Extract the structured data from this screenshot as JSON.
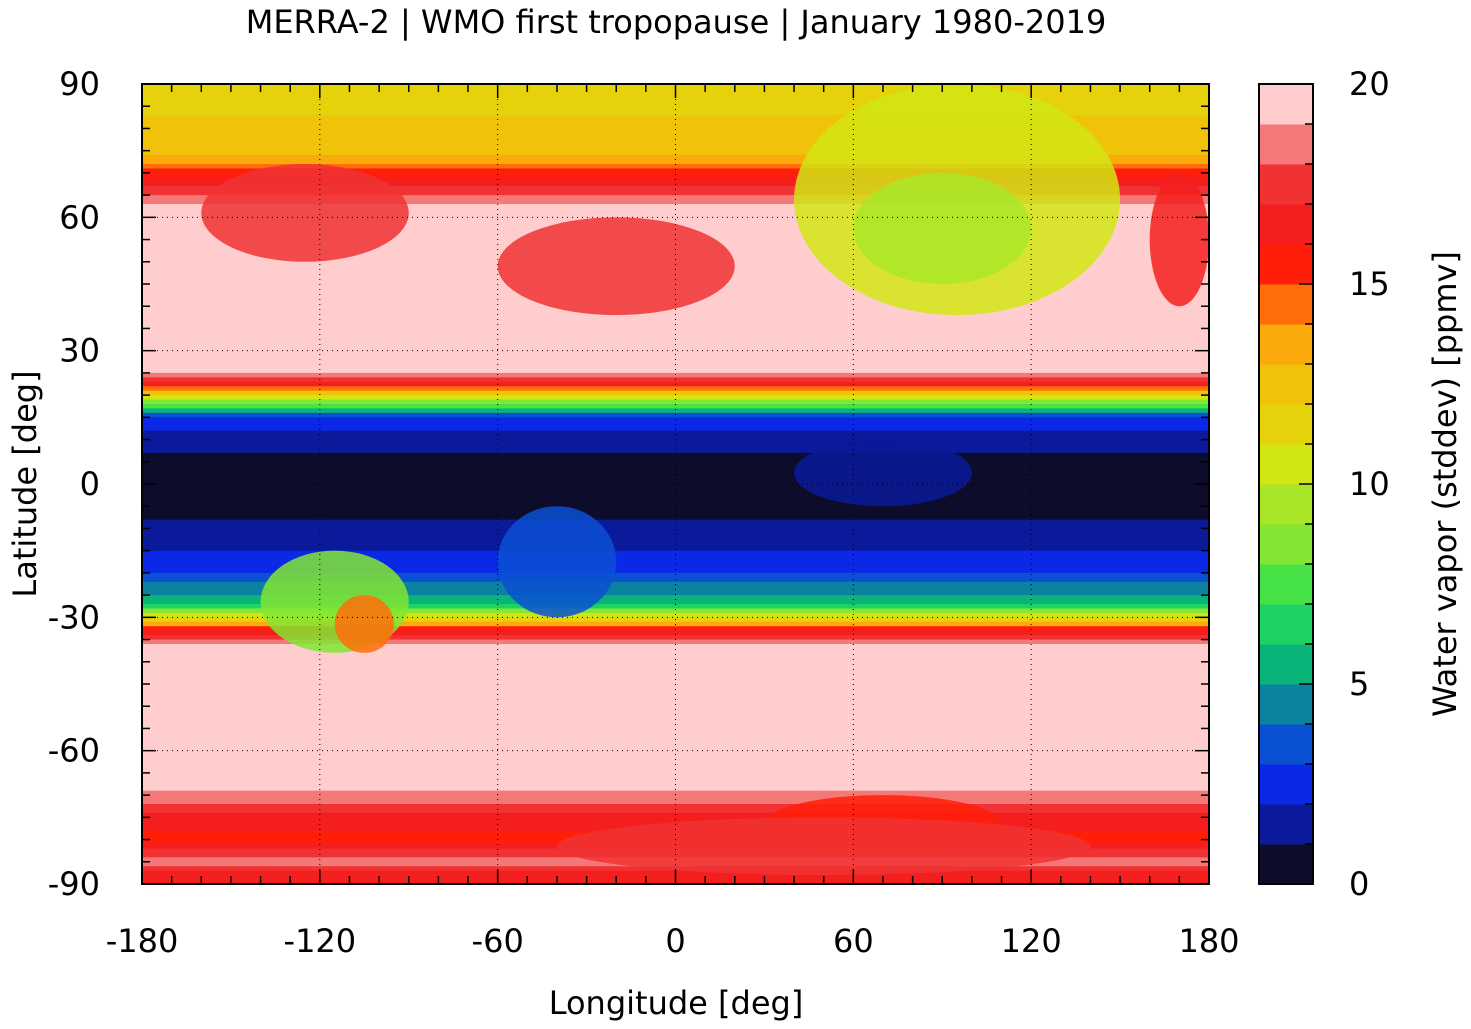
{
  "chart_data": {
    "type": "heatmap",
    "title": "MERRA-2 | WMO first tropopause | January 1980-2019",
    "xlabel": "Longitude [deg]",
    "ylabel": "Latitude [deg]",
    "colorbar_label": "Water vapor (stddev) [ppmv]",
    "xlim": [
      -180,
      180
    ],
    "ylim": [
      -90,
      90
    ],
    "xticks": [
      "-180",
      "-120",
      "-60",
      "0",
      "60",
      "120",
      "180"
    ],
    "yticks": [
      "-90",
      "-60",
      "-30",
      "0",
      "30",
      "60",
      "90"
    ],
    "xtick_values": [
      -180,
      -120,
      -60,
      0,
      60,
      120,
      180
    ],
    "ytick_values": [
      -90,
      -60,
      -30,
      0,
      30,
      60,
      90
    ],
    "colorbar_ticks": [
      "0",
      "5",
      "10",
      "15",
      "20"
    ],
    "colorbar_tick_values": [
      0,
      5,
      10,
      15,
      20
    ],
    "colorbar_range": [
      0,
      20
    ],
    "grid": true,
    "colorbar_levels": [
      {
        "from": 0,
        "to": 1,
        "color": "#0d0d2b"
      },
      {
        "from": 1,
        "to": 2,
        "color": "#0a1a9a"
      },
      {
        "from": 2,
        "to": 3,
        "color": "#0a28e6"
      },
      {
        "from": 3,
        "to": 4,
        "color": "#0a50d2"
      },
      {
        "from": 4,
        "to": 5,
        "color": "#0a82a0"
      },
      {
        "from": 5,
        "to": 6,
        "color": "#0ab478"
      },
      {
        "from": 6,
        "to": 7,
        "color": "#1ed264"
      },
      {
        "from": 7,
        "to": 8,
        "color": "#46e246"
      },
      {
        "from": 8,
        "to": 9,
        "color": "#82e632"
      },
      {
        "from": 9,
        "to": 10,
        "color": "#aae628"
      },
      {
        "from": 10,
        "to": 11,
        "color": "#d2e614"
      },
      {
        "from": 11,
        "to": 12,
        "color": "#e6d20a"
      },
      {
        "from": 12,
        "to": 13,
        "color": "#f0c30a"
      },
      {
        "from": 13,
        "to": 14,
        "color": "#faaa0a"
      },
      {
        "from": 14,
        "to": 15,
        "color": "#ff6e0a"
      },
      {
        "from": 15,
        "to": 16,
        "color": "#ff1e0a"
      },
      {
        "from": 16,
        "to": 17,
        "color": "#f51e1e"
      },
      {
        "from": 17,
        "to": 18,
        "color": "#f03232"
      },
      {
        "from": 18,
        "to": 19,
        "color": "#f57878"
      },
      {
        "from": 19,
        "to": 20,
        "color": "#ffcdcd"
      }
    ],
    "field_zonal_profile": [
      {
        "lat": 90,
        "value": 11.5
      },
      {
        "lat": 75,
        "value": 12.5
      },
      {
        "lat": 68,
        "value": 16.5
      },
      {
        "lat": 62,
        "value": 19.5
      },
      {
        "lat": 40,
        "value": 19.5
      },
      {
        "lat": 25,
        "value": 19.5
      },
      {
        "lat": 22,
        "value": 15.5
      },
      {
        "lat": 18,
        "value": 8
      },
      {
        "lat": 15,
        "value": 3
      },
      {
        "lat": 10,
        "value": 1.5
      },
      {
        "lat": 5,
        "value": 0.5
      },
      {
        "lat": -5,
        "value": 0.5
      },
      {
        "lat": -12,
        "value": 1.5
      },
      {
        "lat": -20,
        "value": 3
      },
      {
        "lat": -27,
        "value": 6
      },
      {
        "lat": -30,
        "value": 11
      },
      {
        "lat": -33,
        "value": 16
      },
      {
        "lat": -36,
        "value": 19.5
      },
      {
        "lat": -68,
        "value": 19.5
      },
      {
        "lat": -75,
        "value": 16.5
      },
      {
        "lat": -80,
        "value": 15.5
      },
      {
        "lat": -85,
        "value": 19
      },
      {
        "lat": -87,
        "value": 16.5
      },
      {
        "lat": -90,
        "value": 16.5
      }
    ],
    "field_regional_features": [
      {
        "lon": [
          40,
          150
        ],
        "lat": [
          38,
          90
        ],
        "value": 10.5
      },
      {
        "lon": [
          60,
          120
        ],
        "lat": [
          45,
          70
        ],
        "value": 9.5
      },
      {
        "lon": [
          -160,
          -90
        ],
        "lat": [
          50,
          72
        ],
        "value": 17
      },
      {
        "lon": [
          -60,
          20
        ],
        "lat": [
          38,
          60
        ],
        "value": 17
      },
      {
        "lon": [
          160,
          180
        ],
        "lat": [
          40,
          70
        ],
        "value": 16
      },
      {
        "lon": [
          -140,
          -90
        ],
        "lat": [
          -38,
          -15
        ],
        "value": 8.5
      },
      {
        "lon": [
          -115,
          -95
        ],
        "lat": [
          -38,
          -25
        ],
        "value": 14
      },
      {
        "lon": [
          -60,
          -20
        ],
        "lat": [
          -30,
          -5
        ],
        "value": 3.5
      },
      {
        "lon": [
          40,
          100
        ],
        "lat": [
          -5,
          10
        ],
        "value": 1.5
      },
      {
        "lon": [
          30,
          110
        ],
        "lat": [
          -83,
          -70
        ],
        "value": 15
      },
      {
        "lon": [
          -40,
          140
        ],
        "lat": [
          -88,
          -75
        ],
        "value": 17
      }
    ]
  }
}
